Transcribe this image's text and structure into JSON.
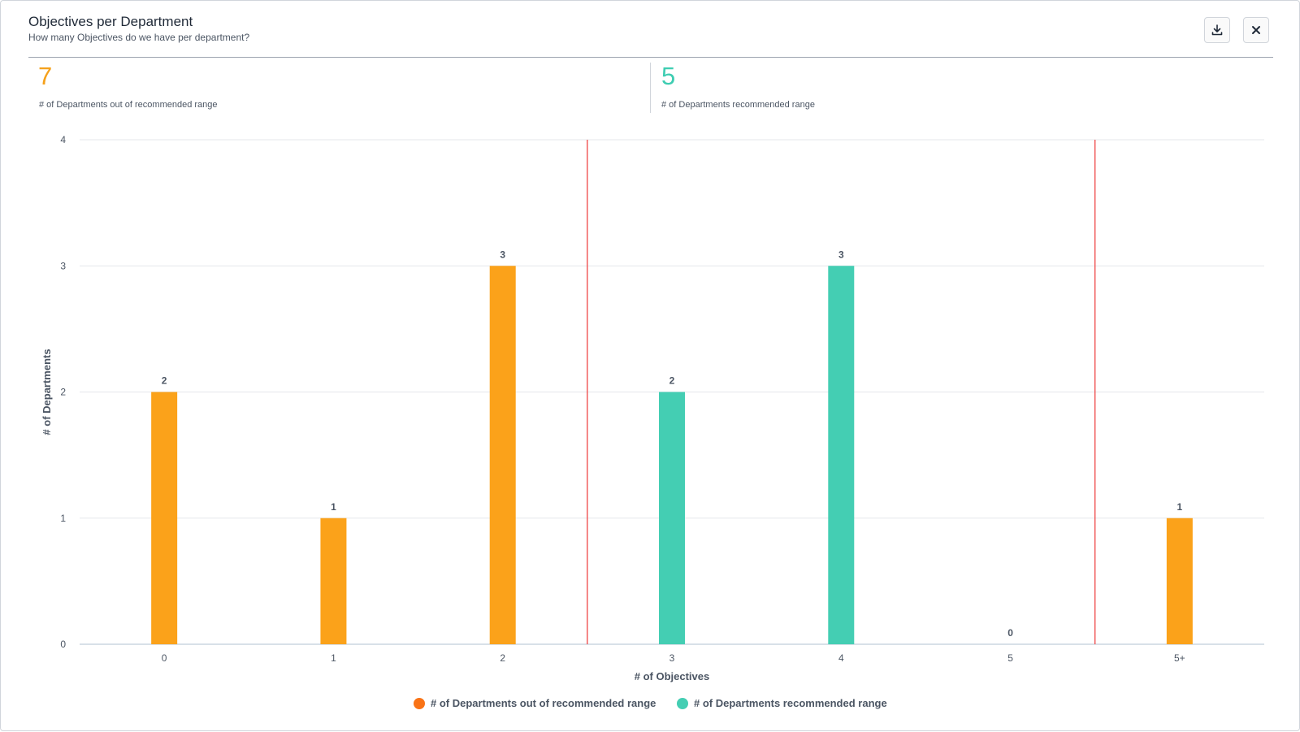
{
  "header": {
    "title": "Objectives per Department",
    "subtitle": "How many Objectives do we have per department?"
  },
  "toolbar": {
    "download_icon": "download-icon",
    "close_icon": "close-icon"
  },
  "stats": [
    {
      "value": "7",
      "label": "# of Departments out of recommended range",
      "color": "#f5a11b"
    },
    {
      "value": "5",
      "label": "# of Departments recommended range",
      "color": "#3ecdb2"
    }
  ],
  "colors": {
    "out_of_range": "#fba21a",
    "in_range": "#44ceb3",
    "range_line": "#ef4444",
    "grid": "#e5e7eb",
    "axis": "#cbd5e1"
  },
  "chart_data": {
    "type": "bar",
    "categories": [
      "0",
      "1",
      "2",
      "3",
      "4",
      "5",
      "5+"
    ],
    "values": [
      2,
      1,
      3,
      2,
      3,
      0,
      1
    ],
    "in_recommended_range": [
      false,
      false,
      false,
      true,
      true,
      true,
      false
    ],
    "recommended_range_bounds": [
      "3",
      "5"
    ],
    "xlabel": "# of Objectives",
    "ylabel": "# of Departments",
    "ylim": [
      0,
      4
    ],
    "yticks": [
      "0",
      "1",
      "2",
      "3",
      "4"
    ],
    "grid": true,
    "legend_position": "bottom-center",
    "legend": [
      {
        "label": "# of Departments out of recommended range",
        "color": "#f97316"
      },
      {
        "label": "# of Departments recommended range",
        "color": "#44ceb3"
      }
    ]
  }
}
